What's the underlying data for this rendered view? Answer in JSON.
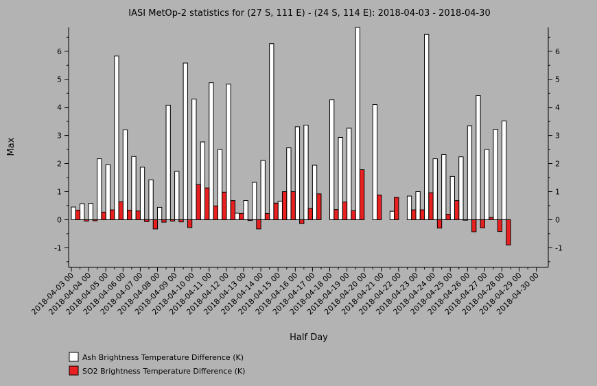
{
  "chart_data": {
    "type": "bar",
    "title": "IASI MetOp-2 statistics for (27 S, 111 E) - (24 S, 114 E): 2018-04-03 - 2018-04-30",
    "xlabel": "Half Day",
    "ylabel": "Max",
    "ylim": [
      -1.7,
      6.85
    ],
    "yticks": [
      -1,
      0,
      1,
      2,
      3,
      4,
      5,
      6
    ],
    "categories": [
      "2018-04-03 00",
      "2018-04-03 12",
      "2018-04-04 00",
      "2018-04-04 12",
      "2018-04-05 00",
      "2018-04-05 12",
      "2018-04-06 00",
      "2018-04-06 12",
      "2018-04-07 00",
      "2018-04-07 12",
      "2018-04-08 00",
      "2018-04-08 12",
      "2018-04-09 00",
      "2018-04-09 12",
      "2018-04-10 00",
      "2018-04-10 12",
      "2018-04-11 00",
      "2018-04-11 12",
      "2018-04-12 00",
      "2018-04-12 12",
      "2018-04-13 00",
      "2018-04-13 12",
      "2018-04-14 00",
      "2018-04-14 12",
      "2018-04-15 00",
      "2018-04-15 12",
      "2018-04-16 00",
      "2018-04-16 12",
      "2018-04-17 00",
      "2018-04-17 12",
      "2018-04-18 00",
      "2018-04-18 12",
      "2018-04-19 00",
      "2018-04-19 12",
      "2018-04-20 00",
      "2018-04-20 12",
      "2018-04-21 00",
      "2018-04-21 12",
      "2018-04-22 00",
      "2018-04-22 12",
      "2018-04-23 00",
      "2018-04-23 12",
      "2018-04-24 00",
      "2018-04-24 12",
      "2018-04-25 00",
      "2018-04-25 12",
      "2018-04-26 00",
      "2018-04-26 12",
      "2018-04-27 00",
      "2018-04-27 12",
      "2018-04-28 00",
      "2018-04-28 12",
      "2018-04-29 00",
      "2018-04-29 12",
      "2018-04-30 00"
    ],
    "tick_labels": [
      "2018-04-03 00",
      "2018-04-04 00",
      "2018-04-05 00",
      "2018-04-06 00",
      "2018-04-07 00",
      "2018-04-08 00",
      "2018-04-09 00",
      "2018-04-10 00",
      "2018-04-11 00",
      "2018-04-12 00",
      "2018-04-13 00",
      "2018-04-14 00",
      "2018-04-15 00",
      "2018-04-16 00",
      "2018-04-17 00",
      "2018-04-18 00",
      "2018-04-19 00",
      "2018-04-20 00",
      "2018-04-21 00",
      "2018-04-22 00",
      "2018-04-23 00",
      "2018-04-24 00",
      "2018-04-25 00",
      "2018-04-26 00",
      "2018-04-27 00",
      "2018-04-28 00",
      "2018-04-29 00",
      "2018-04-30 00"
    ],
    "series": [
      {
        "name": "Ash Brightness Temperature Difference (K)",
        "color": "#ffffff",
        "values": [
          0.45,
          0.57,
          0.58,
          2.17,
          1.96,
          5.83,
          3.2,
          2.25,
          1.87,
          1.42,
          0.44,
          4.08,
          1.72,
          5.58,
          4.3,
          2.77,
          4.88,
          2.5,
          4.83,
          0.23,
          0.68,
          1.33,
          2.11,
          6.27,
          0.66,
          2.56,
          3.31,
          3.37,
          1.94,
          null,
          4.27,
          2.93,
          3.26,
          6.85,
          null,
          4.1,
          null,
          0.3,
          null,
          0.84,
          1.0,
          6.6,
          2.17,
          2.32,
          1.54,
          2.24,
          3.34,
          4.42,
          2.5,
          3.22,
          3.52,
          null,
          null,
          null,
          null
        ]
      },
      {
        "name": "SO2 Brightness Temperature Difference (K)",
        "color": "#e82020",
        "values": [
          0.34,
          -0.05,
          -0.04,
          0.27,
          0.35,
          0.64,
          0.34,
          0.31,
          -0.07,
          -0.33,
          -0.09,
          -0.05,
          -0.08,
          -0.28,
          1.25,
          1.13,
          0.49,
          0.98,
          0.68,
          0.22,
          -0.03,
          -0.33,
          0.22,
          0.59,
          1.0,
          1.0,
          -0.14,
          0.4,
          0.92,
          null,
          0.36,
          0.63,
          0.32,
          1.78,
          null,
          0.88,
          null,
          0.8,
          null,
          0.35,
          0.35,
          0.96,
          -0.3,
          0.19,
          0.68,
          0.0,
          -0.43,
          -0.29,
          0.08,
          -0.42,
          -0.9,
          null,
          null,
          null,
          null
        ]
      }
    ],
    "legend_position": "bottom-left",
    "grid": false
  }
}
